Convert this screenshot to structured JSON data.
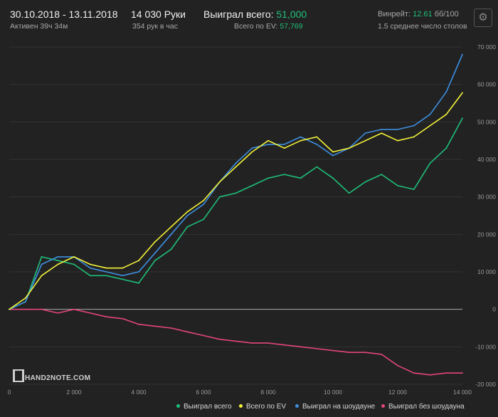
{
  "header": {
    "date_range": "30.10.2018 - 13.11.2018",
    "active": "Активен 39ч 34м",
    "hands": "14 030 Руки",
    "hands_per_hour": "354 рук в час",
    "won_label": "Выиграл всего:",
    "won_value": "51,000",
    "ev_label": "Всего по EV:",
    "ev_value": "57,769",
    "winrate_label": "Винрейт:",
    "winrate_value": "12.61",
    "winrate_unit": "бб/100",
    "tables": "1.5 среднее число столов"
  },
  "logo_text": "HAND2NOTE.COM",
  "icons": {
    "settings": "gear-icon"
  },
  "colors": {
    "background": "#222222",
    "won_total": "#1fbf7a",
    "ev": "#f2f23a",
    "showdown": "#3d8fe0",
    "non_showdown": "#e2457a",
    "zero_line": "#aaaaaa"
  },
  "chart_data": {
    "type": "line",
    "xlim": [
      0,
      14000
    ],
    "ylim": [
      -20000,
      70000
    ],
    "x_ticks": [
      0,
      2000,
      4000,
      6000,
      8000,
      10000,
      12000,
      14000
    ],
    "x_tick_labels": [
      "0",
      "2 000",
      "4 000",
      "6 000",
      "8 000",
      "10 000",
      "12 000",
      "14 000"
    ],
    "y_ticks": [
      -20000,
      -10000,
      0,
      10000,
      20000,
      30000,
      40000,
      50000,
      60000,
      70000
    ],
    "y_tick_labels": [
      "-20 000",
      "-10 000",
      "0",
      "10 000",
      "20 000",
      "30 000",
      "40 000",
      "50 000",
      "60 000",
      "70 000"
    ],
    "x": [
      0,
      500,
      1000,
      1500,
      2000,
      2500,
      3000,
      3500,
      4000,
      4500,
      5000,
      5500,
      6000,
      6500,
      7000,
      7500,
      8000,
      8500,
      9000,
      9500,
      10000,
      10500,
      11000,
      11500,
      12000,
      12500,
      13000,
      13500,
      14000
    ],
    "series": [
      {
        "name": "Выиграл всего",
        "color": "#1fbf7a",
        "values": [
          0,
          2000,
          14000,
          13000,
          12000,
          9000,
          9000,
          8000,
          7000,
          13000,
          16000,
          22000,
          24000,
          30000,
          31000,
          33000,
          35000,
          36000,
          35000,
          38000,
          35000,
          31000,
          34000,
          36000,
          33000,
          32000,
          39000,
          43000,
          51000
        ]
      },
      {
        "name": "Всего по EV",
        "color": "#f2f23a",
        "values": [
          0,
          3000,
          9000,
          12000,
          14000,
          12000,
          11000,
          11000,
          13000,
          18000,
          22000,
          26000,
          29000,
          34000,
          38000,
          42000,
          45000,
          43000,
          45000,
          46000,
          42000,
          43000,
          45000,
          47000,
          45000,
          46000,
          49000,
          52000,
          57769
        ]
      },
      {
        "name": "Выиграл на шоудауне",
        "color": "#3d8fe0",
        "values": [
          0,
          2000,
          12000,
          14000,
          14000,
          11000,
          10000,
          9000,
          10000,
          15000,
          20000,
          25000,
          28000,
          34000,
          39000,
          43000,
          44000,
          44000,
          46000,
          44000,
          41000,
          43000,
          47000,
          48000,
          48000,
          49000,
          52000,
          58000,
          68000
        ]
      },
      {
        "name": "Выиграл без шоудауна",
        "color": "#e2457a",
        "values": [
          0,
          0,
          0,
          -1000,
          0,
          -1000,
          -2000,
          -2500,
          -4000,
          -4500,
          -5000,
          -6000,
          -7000,
          -8000,
          -8500,
          -9000,
          -9000,
          -9500,
          -10000,
          -10500,
          -11000,
          -11500,
          -11500,
          -12000,
          -15000,
          -17000,
          -17500,
          -17000,
          -17000
        ]
      }
    ]
  }
}
